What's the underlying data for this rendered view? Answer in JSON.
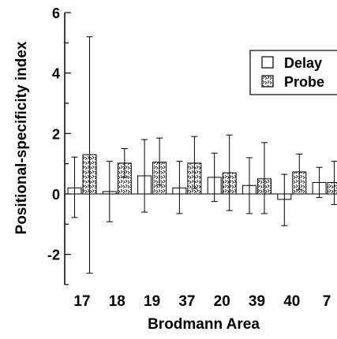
{
  "chart_data": {
    "type": "bar",
    "title": "",
    "xlabel": "Brodmann Area",
    "ylabel": "Positional-specificity index",
    "ylim": [
      -3,
      6
    ],
    "yticks": [
      -2,
      0,
      2,
      4,
      6
    ],
    "ytick_labels": [
      "-2",
      "0",
      "2",
      "4",
      "6"
    ],
    "categories": [
      "17",
      "18",
      "19",
      "37",
      "20",
      "39",
      "40",
      "7"
    ],
    "grid": false,
    "legend": "top-right",
    "series": [
      {
        "name": "Delay",
        "pattern": "open",
        "values": [
          0.2,
          0.08,
          0.6,
          0.2,
          0.55,
          0.28,
          -0.18,
          0.38
        ],
        "err_upper": [
          1.22,
          1.08,
          1.8,
          1.08,
          1.35,
          1.2,
          0.65,
          0.88
        ],
        "err_lower": [
          -0.78,
          -0.92,
          -0.6,
          -0.65,
          -0.25,
          -0.65,
          -1.05,
          -0.12
        ]
      },
      {
        "name": "Probe",
        "pattern": "hatched",
        "values": [
          1.3,
          1.02,
          1.05,
          1.02,
          0.7,
          0.5,
          0.73,
          0.38
        ],
        "err_upper": [
          5.2,
          1.5,
          1.85,
          1.9,
          1.95,
          1.7,
          1.32,
          1.08
        ],
        "err_lower": [
          -2.62,
          0.55,
          0.3,
          0.18,
          -0.55,
          -0.65,
          0.15,
          -0.35
        ]
      }
    ],
    "colors": {
      "axis": "#000000",
      "bar_fill": "#ffffff",
      "hatch": "#000000"
    }
  }
}
